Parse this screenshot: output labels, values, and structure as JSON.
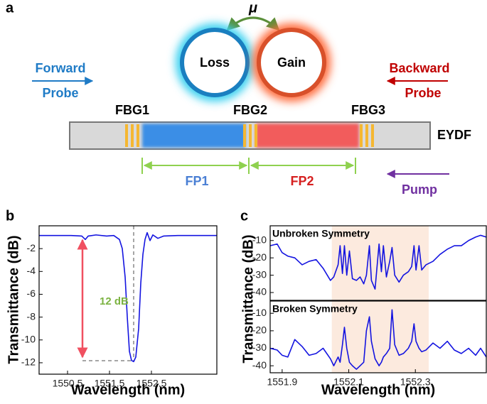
{
  "diagram": {
    "panel": "a",
    "coupling": "μ",
    "loss": "Loss",
    "gain": "Gain",
    "forward": "Forward",
    "forward_probe": "Probe",
    "backward": "Backward",
    "backward_probe": "Probe",
    "fbg1": "FBG1",
    "fbg2": "FBG2",
    "fbg3": "FBG3",
    "fiber": "EYDF",
    "fp1": "FP1",
    "fp2": "FP2",
    "pump": "Pump"
  },
  "chart_data": [
    {
      "type": "line",
      "panel": "b",
      "xlabel": "Wavelength (nm)",
      "ylabel": "Transmittance (dB)",
      "annotation": "12 dB",
      "color": "#1414e0",
      "x": [
        1549.822,
        1550.246,
        1550.585,
        1550.839,
        1550.924,
        1550.992,
        1551.178,
        1551.432,
        1551.602,
        1551.737,
        1551.805,
        1551.873,
        1551.924,
        1551.975,
        1552.025,
        1552.076,
        1552.127,
        1552.195,
        1552.246,
        1552.297,
        1552.347,
        1552.398,
        1552.466,
        1552.534,
        1552.653,
        1552.788,
        1553.127,
        1553.636,
        1554.059
      ],
      "values": [
        -0.85,
        -0.85,
        -0.85,
        -0.9,
        -1.2,
        -0.9,
        -0.8,
        -0.9,
        -0.85,
        -1.2,
        -2,
        -4.5,
        -8,
        -11,
        -11.8,
        -11.9,
        -11.5,
        -9,
        -5,
        -2.5,
        -1.2,
        -0.6,
        -1.3,
        -0.8,
        -1.1,
        -0.9,
        -0.85,
        -0.85,
        -0.85
      ],
      "xlim": [
        1549.822,
        1554.059
      ],
      "ylim": [
        -13,
        0
      ],
      "xticks": [
        1550.5,
        1551.5,
        1552.5
      ],
      "yticks": [
        -2,
        -4,
        -6,
        -8,
        -10,
        -12
      ]
    },
    {
      "type": "line",
      "panel": "c",
      "annotation": "Unbroken Symmetry",
      "color": "#1414e0",
      "shaded_region": [
        1552.049,
        1552.34
      ],
      "x": [
        1551.864,
        1551.885,
        1551.9,
        1551.917,
        1551.938,
        1551.96,
        1551.981,
        1552.002,
        1552.023,
        1552.045,
        1552.055,
        1552.068,
        1552.074,
        1552.081,
        1552.087,
        1552.094,
        1552.102,
        1552.111,
        1552.123,
        1552.134,
        1552.145,
        1552.153,
        1552.162,
        1552.168,
        1552.179,
        1552.191,
        1552.198,
        1552.204,
        1552.213,
        1552.223,
        1552.23,
        1552.238,
        1552.251,
        1552.264,
        1552.279,
        1552.289,
        1552.296,
        1552.302,
        1552.311,
        1552.319,
        1552.332,
        1552.353,
        1552.374,
        1552.396,
        1552.417,
        1552.438,
        1552.46,
        1552.481,
        1552.496,
        1552.513
      ],
      "values": [
        -13,
        -12,
        -17,
        -19,
        -20,
        -24,
        -22,
        -21,
        -26,
        -33,
        -31,
        -24,
        -13,
        -29,
        -13,
        -30,
        -16,
        -32,
        -33,
        -31,
        -35,
        -30,
        -13,
        -33,
        -38,
        -12,
        -28,
        -13,
        -31,
        -22,
        -14,
        -30,
        -34,
        -30,
        -28,
        -25,
        -13,
        -27,
        -13,
        -27,
        -24,
        -22,
        -18,
        -15,
        -13,
        -13,
        -10,
        -8,
        -7,
        -8
      ],
      "xlim": [
        1551.864,
        1552.513
      ],
      "ylim": [
        -44.5,
        -1.5
      ],
      "yticks": [
        -10,
        -20,
        -30,
        -40
      ]
    },
    {
      "type": "line",
      "xlabel": "Wavelength (nm)",
      "ylabel": "Transmittance (dB)",
      "annotation": "Broken Symmetry",
      "color": "#1414e0",
      "shaded_region": [
        1552.049,
        1552.34
      ],
      "x": [
        1551.864,
        1551.885,
        1551.9,
        1551.917,
        1551.938,
        1551.96,
        1551.981,
        1552.002,
        1552.023,
        1552.045,
        1552.055,
        1552.068,
        1552.074,
        1552.081,
        1552.087,
        1552.094,
        1552.102,
        1552.111,
        1552.123,
        1552.134,
        1552.145,
        1552.153,
        1552.162,
        1552.168,
        1552.179,
        1552.191,
        1552.198,
        1552.204,
        1552.213,
        1552.223,
        1552.23,
        1552.238,
        1552.251,
        1552.264,
        1552.279,
        1552.289,
        1552.296,
        1552.302,
        1552.311,
        1552.319,
        1552.332,
        1552.353,
        1552.374,
        1552.396,
        1552.417,
        1552.438,
        1552.46,
        1552.481,
        1552.496,
        1552.513
      ],
      "values": [
        -30,
        -31,
        -34,
        -35,
        -25,
        -29,
        -34,
        -33,
        -30,
        -36,
        -40,
        -35,
        -38,
        -28,
        -18,
        -30,
        -38,
        -40,
        -42,
        -40,
        -38,
        -20,
        -12,
        -26,
        -36,
        -40,
        -38,
        -35,
        -33,
        -30,
        -8,
        -28,
        -34,
        -33,
        -30,
        -26,
        -16,
        -26,
        -30,
        -32,
        -31,
        -27,
        -30,
        -26,
        -31,
        -33,
        -30,
        -34,
        -30,
        -35
      ],
      "xlim": [
        1551.864,
        1552.513
      ],
      "ylim": [
        -44,
        -3
      ],
      "xticks": [
        1551.9,
        1552.1,
        1552.3
      ],
      "yticks": [
        -10,
        -20,
        -30,
        -40
      ]
    }
  ]
}
